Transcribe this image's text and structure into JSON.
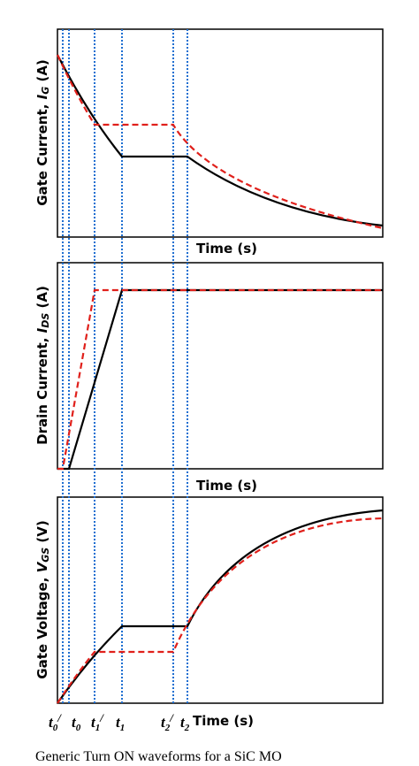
{
  "panels": [
    {
      "ylabel": {
        "text": "Gate Current, ",
        "symbol": "I",
        "sub": "G",
        "unit": " (A)"
      },
      "xlabel": "Time (s)"
    },
    {
      "ylabel": {
        "text": "Drain Current, ",
        "symbol": "I",
        "sub": "DS",
        "unit": " (A)"
      },
      "xlabel": "Time (s)"
    },
    {
      "ylabel": {
        "text": "Gate Voltage, ",
        "symbol": "V",
        "sub": "GS",
        "unit": " (V)"
      },
      "xlabel": "Time (s)"
    }
  ],
  "time_marks": [
    {
      "symbol": "t",
      "sub": "0",
      "prime": "/"
    },
    {
      "symbol": "t",
      "sub": "0"
    },
    {
      "symbol": "t",
      "sub": "1",
      "prime": "/"
    },
    {
      "symbol": "t",
      "sub": "1"
    },
    {
      "symbol": "t",
      "sub": "2",
      "prime": "/"
    },
    {
      "symbol": "t",
      "sub": "2"
    }
  ],
  "caption": "Generic Turn ON waveforms for a SiC MO"
}
